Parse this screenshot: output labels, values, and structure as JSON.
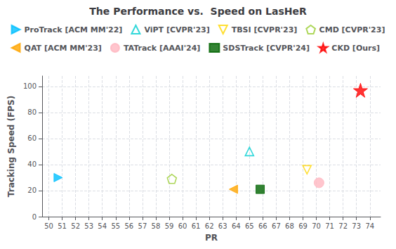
{
  "chart_data": {
    "type": "scatter",
    "title": "The Performance vs.  Speed on LasHeR",
    "xlabel": "PR",
    "ylabel": "Tracking Speed (FPS)",
    "xlim": [
      49.5,
      74.8
    ],
    "ylim": [
      0,
      108
    ],
    "xticks": [
      50,
      51,
      52,
      53,
      54,
      55,
      56,
      57,
      58,
      59,
      60,
      61,
      62,
      63,
      64,
      65,
      66,
      67,
      68,
      69,
      70,
      71,
      72,
      73,
      74
    ],
    "yticks": [
      0,
      20,
      40,
      60,
      80,
      100
    ],
    "grid": true,
    "legend": "top",
    "series": [
      {
        "name": "ProTrack [ACM MM'22]",
        "color": "#00BFFF",
        "marker": "triangle-right",
        "x": [
          50.7
        ],
        "values": [
          30
        ]
      },
      {
        "name": "ViPT [CVPR'23]",
        "color": "#00CED1",
        "marker": "triangle-up-open",
        "x": [
          65.0
        ],
        "values": [
          50
        ]
      },
      {
        "name": "TBSI [CVPR'23]",
        "color": "#FFD700",
        "marker": "triangle-down-open",
        "x": [
          69.3
        ],
        "values": [
          36
        ]
      },
      {
        "name": "CMD [CVPR'23]",
        "color": "#9ACD32",
        "marker": "pentagon-open",
        "x": [
          59.2
        ],
        "values": [
          29
        ]
      },
      {
        "name": "QAT [ACM MM'23]",
        "color": "#FFA500",
        "marker": "triangle-left",
        "x": [
          63.8
        ],
        "values": [
          21
        ]
      },
      {
        "name": "TATrack [AAAI'24]",
        "color": "#FFB6C1",
        "marker": "circle",
        "x": [
          70.2
        ],
        "values": [
          26
        ]
      },
      {
        "name": "SDSTrack [CVPR'24]",
        "color": "#006400",
        "marker": "square",
        "x": [
          65.8
        ],
        "values": [
          21
        ]
      },
      {
        "name": "CKD [Ours]",
        "color": "#FF0000",
        "marker": "star",
        "x": [
          73.3
        ],
        "values": [
          97
        ]
      }
    ]
  }
}
